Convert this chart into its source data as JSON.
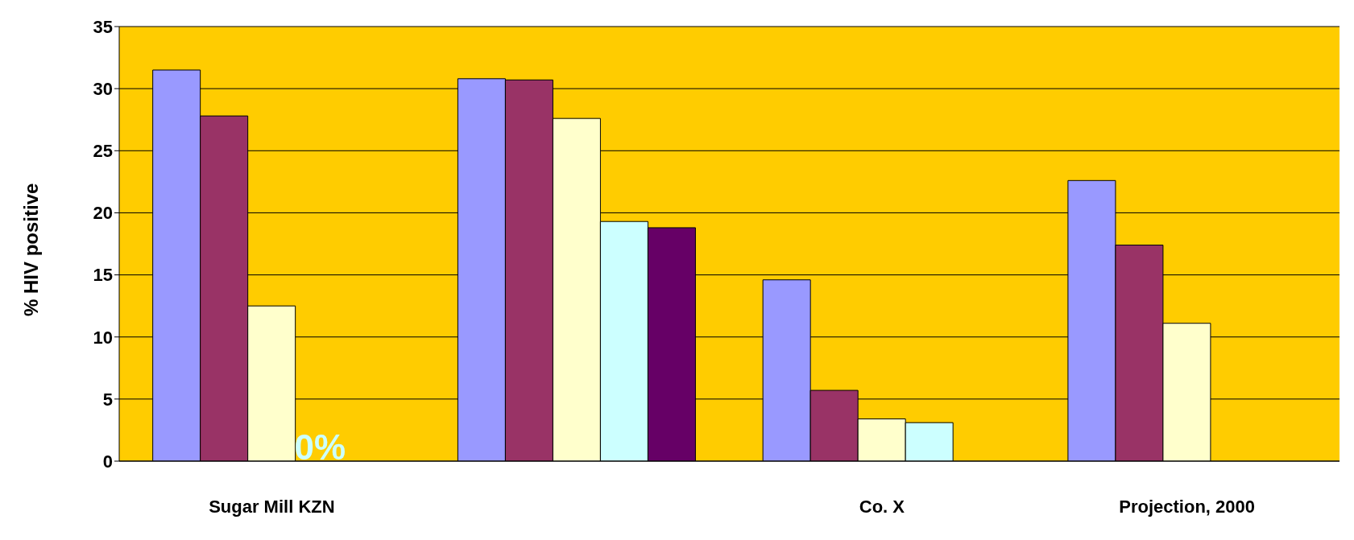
{
  "chart_data": {
    "type": "bar",
    "ylabel": "% HIV positive",
    "categories": [
      "Sugar Mill KZN",
      null,
      "Co. X",
      "Projection, 2000"
    ],
    "series": [
      {
        "color": "#9999ff",
        "values": [
          31.5,
          30.8,
          14.6,
          22.6
        ]
      },
      {
        "color": "#993366",
        "values": [
          27.8,
          30.7,
          5.7,
          17.4
        ]
      },
      {
        "color": "#ffffcc",
        "values": [
          12.5,
          27.6,
          3.4,
          11.1
        ]
      },
      {
        "color": "#ccffff",
        "values": [
          0,
          19.3,
          3.1,
          null
        ]
      },
      {
        "color": "#660066",
        "values": [
          null,
          18.8,
          null,
          null
        ]
      }
    ],
    "ylim": [
      0,
      35
    ],
    "yticks": [
      0,
      5,
      10,
      15,
      20,
      25,
      30,
      35
    ],
    "grid": "y",
    "annotations": [
      {
        "text": "0%",
        "x": "Sugar Mill KZN",
        "y": 0
      }
    ]
  }
}
